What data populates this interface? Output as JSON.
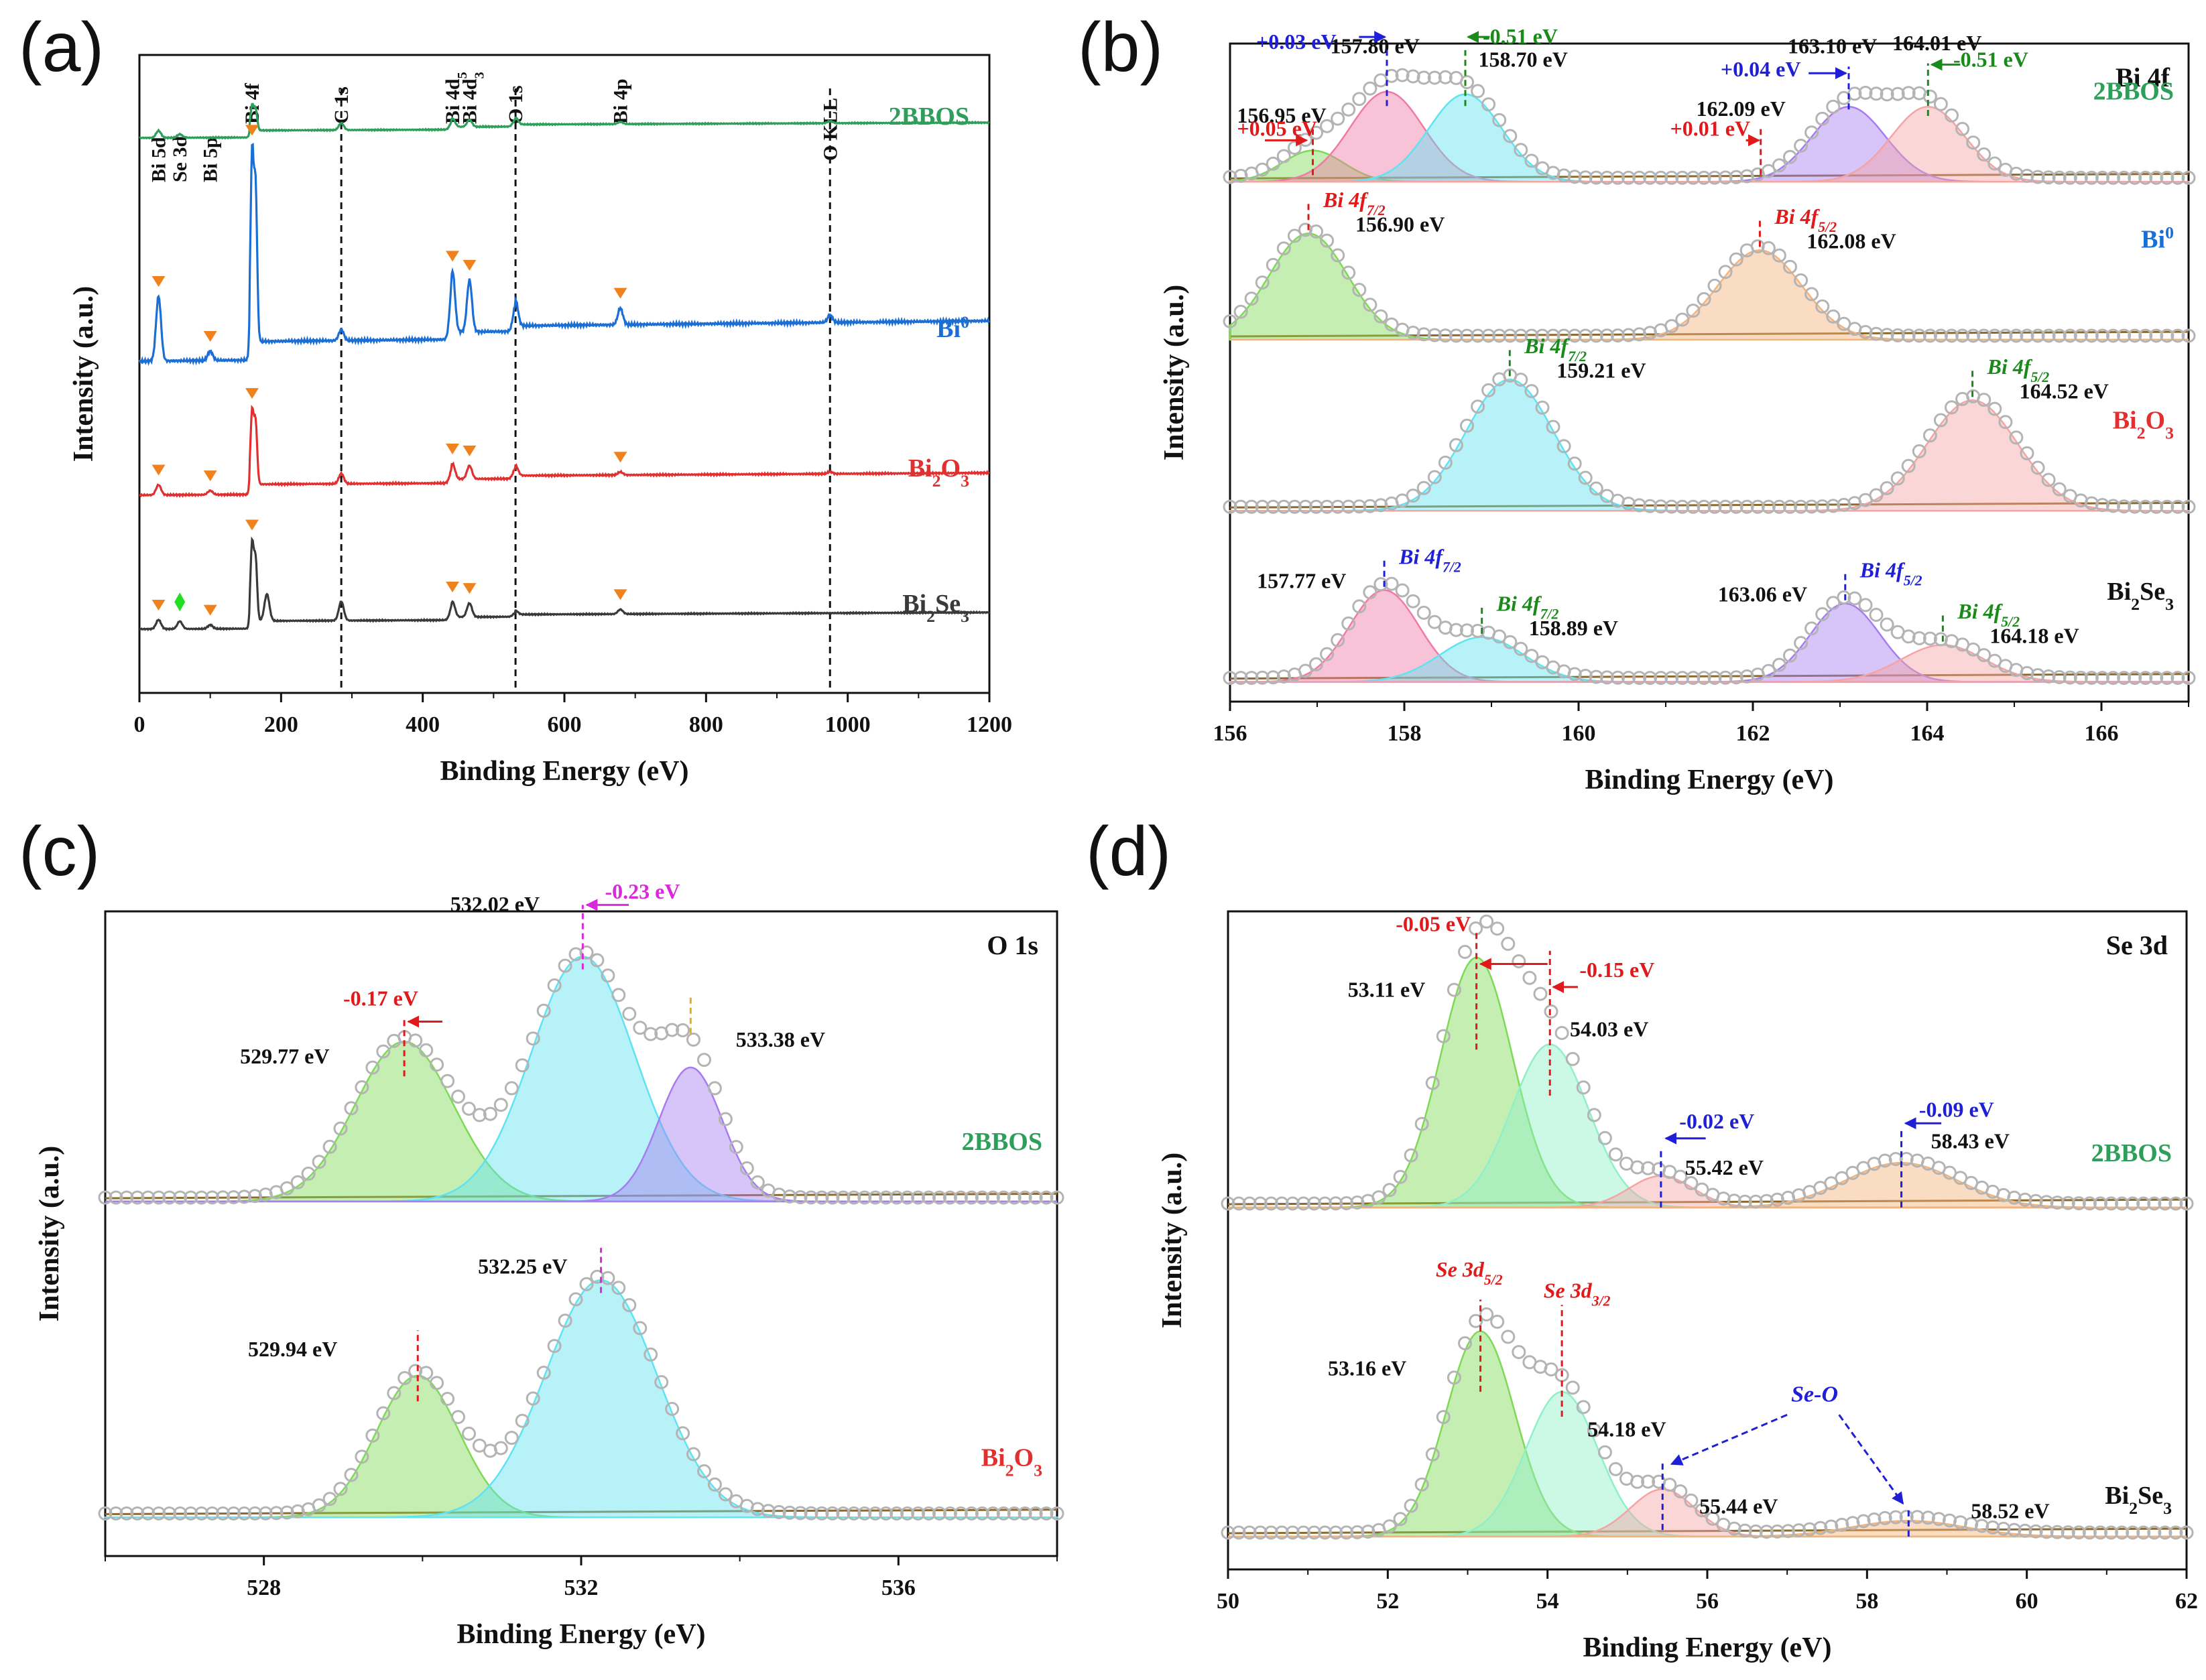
{
  "colors": {
    "green": "#2e9e5b",
    "blue": "#1a6ed4",
    "red": "#e03030",
    "dark": "#3a3a3a",
    "orange": "#f0821e",
    "pink": "#f07aa5",
    "cyan": "#5fe3f2",
    "purple": "#a77cf0",
    "salmon": "#f5a3a3",
    "lime": "#7ed957",
    "peach": "#f5b27a",
    "mint": "#8ff0c8",
    "annBlue": "#1f1fd6",
    "annRed": "#e01a1a",
    "annGreen": "#1a8a1a",
    "annMagenta": "#d92ad9",
    "annGold": "#e0b020",
    "envelope": "#b4b4b4",
    "baseline": "#8b6a2c"
  },
  "chart_data": [
    {
      "panel": "(a)",
      "type": "line",
      "xlabel": "Binding Energy (eV)",
      "ylabel": "Intensity (a.u.)",
      "xlim": [
        0,
        1200
      ],
      "xticks": [
        0,
        200,
        400,
        600,
        800,
        1000,
        1200
      ],
      "vlines": [
        285,
        531,
        975
      ],
      "peak_labels": [
        {
          "text": "Bi 5d",
          "x": 27
        },
        {
          "text": "Se 3d",
          "x": 57
        },
        {
          "text": "Bi 5p",
          "x": 100
        },
        {
          "text": "Bi 4f",
          "x": 159
        },
        {
          "text": "C 1s",
          "x": 285
        },
        {
          "text": "Bi 4d",
          "sub": "5",
          "x": 442
        },
        {
          "text": "Bi 4d",
          "sub": "3",
          "x": 466
        },
        {
          "text": "O 1s",
          "x": 531
        },
        {
          "text": "Bi 4p",
          "x": 679
        },
        {
          "text": "O KLL",
          "x": 975
        }
      ],
      "series": [
        {
          "name": "2BBOS",
          "label": "2BBOS",
          "color_key": "green",
          "offset": 0.87,
          "scale": 0.11,
          "peaks": [
            [
              27,
              0.1
            ],
            [
              57,
              0.05
            ],
            [
              159,
              0.35
            ],
            [
              164,
              0.3
            ],
            [
              285,
              0.1
            ],
            [
              442,
              0.12
            ],
            [
              466,
              0.1
            ],
            [
              531,
              0.1
            ],
            [
              679,
              0.03
            ],
            [
              975,
              0.03
            ]
          ],
          "background": "rising"
        },
        {
          "name": "Bi0",
          "label": "Bi",
          "label_sup": "0",
          "color_key": "blue",
          "offset": 0.52,
          "scale": 0.29,
          "peaks": [
            [
              27,
              0.35
            ],
            [
              100,
              0.05
            ],
            [
              159,
              1.0
            ],
            [
              164,
              0.82
            ],
            [
              285,
              0.06
            ],
            [
              442,
              0.33
            ],
            [
              466,
              0.28
            ],
            [
              531,
              0.14
            ],
            [
              679,
              0.09
            ],
            [
              975,
              0.04
            ]
          ],
          "background": "rising",
          "markers": [
            27,
            100,
            159,
            442,
            466,
            679
          ]
        },
        {
          "name": "Bi2O3",
          "label": "Bi",
          "label_sub": "2",
          "label_mid": "O",
          "label_sub2": "3",
          "color_key": "red",
          "offset": 0.31,
          "scale": 0.16,
          "peaks": [
            [
              27,
              0.1
            ],
            [
              100,
              0.04
            ],
            [
              159,
              0.7
            ],
            [
              164,
              0.6
            ],
            [
              285,
              0.1
            ],
            [
              442,
              0.15
            ],
            [
              466,
              0.13
            ],
            [
              531,
              0.1
            ],
            [
              679,
              0.03
            ],
            [
              975,
              0.02
            ]
          ],
          "background": "rising",
          "markers": [
            27,
            100,
            159,
            442,
            466,
            679
          ]
        },
        {
          "name": "Bi2Se3",
          "label": "Bi",
          "label_sub": "2",
          "label_mid": "Se",
          "label_sub2": "3",
          "color_key": "dark",
          "offset": 0.1,
          "scale": 0.12,
          "peaks": [
            [
              27,
              0.12
            ],
            [
              57,
              0.1
            ],
            [
              100,
              0.05
            ],
            [
              159,
              1.0
            ],
            [
              164,
              0.8
            ],
            [
              180,
              0.35
            ],
            [
              285,
              0.25
            ],
            [
              442,
              0.2
            ],
            [
              466,
              0.18
            ],
            [
              531,
              0.05
            ],
            [
              679,
              0.06
            ]
          ],
          "background": "rising",
          "markers": [
            27,
            100,
            159,
            442,
            466,
            679
          ],
          "diamond": 57
        }
      ]
    },
    {
      "panel": "(b)",
      "type": "line",
      "title": "Bi 4f",
      "xlabel": "Binding Energy (eV)",
      "ylabel": "Intensity (a.u.)",
      "xlim": [
        156,
        167
      ],
      "xticks": [
        156,
        158,
        160,
        162,
        164,
        166
      ],
      "series": [
        {
          "name": "2BBOS",
          "label": "2BBOS",
          "label_color": "green",
          "offset": 0.79,
          "scale": 0.19,
          "components": [
            {
              "center": 156.95,
              "amp": 0.25,
              "sigma": 0.35,
              "color_key": "lime"
            },
            {
              "center": 157.8,
              "amp": 0.72,
              "sigma": 0.42,
              "color_key": "pink"
            },
            {
              "center": 158.7,
              "amp": 0.7,
              "sigma": 0.42,
              "color_key": "cyan"
            },
            {
              "center": 163.1,
              "amp": 0.6,
              "sigma": 0.42,
              "color_key": "purple"
            },
            {
              "center": 164.01,
              "amp": 0.6,
              "sigma": 0.42,
              "color_key": "salmon"
            }
          ],
          "annotations": [
            {
              "text": "157.80 eV",
              "x": 157.8
            },
            {
              "text": "158.70 eV",
              "x": 158.7
            },
            {
              "text": "156.95 eV",
              "x": 156.95
            },
            {
              "text": "163.10 eV",
              "x": 163.1
            },
            {
              "text": "164.01 eV",
              "x": 164.01
            },
            {
              "text": "162.09 eV",
              "x": 162.09
            },
            {
              "text": "+0.03 eV",
              "color_key": "annBlue"
            },
            {
              "text": "-0.51 eV",
              "color_key": "annGreen"
            },
            {
              "text": "+0.05 eV",
              "color_key": "annRed"
            },
            {
              "text": "+0.04 eV",
              "color_key": "annBlue"
            },
            {
              "text": "-0.51 eV",
              "color_key": "annGreen"
            },
            {
              "text": "+0.01 eV",
              "color_key": "annRed"
            }
          ]
        },
        {
          "name": "Bi0",
          "label": "Bi",
          "label_sup": "0",
          "label_color": "blue",
          "offset": 0.55,
          "scale": 0.17,
          "components": [
            {
              "center": 156.9,
              "amp": 0.95,
              "sigma": 0.45,
              "color_key": "lime"
            },
            {
              "center": 162.08,
              "amp": 0.8,
              "sigma": 0.48,
              "color_key": "peach"
            }
          ],
          "annotations": [
            {
              "text": "156.90 eV",
              "x": 156.9,
              "peak": "Bi 4f",
              "sub": "7/2",
              "color_key": "annRed"
            },
            {
              "text": "162.08 eV",
              "x": 162.08,
              "peak": "Bi 4f",
              "sub": "5/2",
              "color_key": "annRed"
            }
          ]
        },
        {
          "name": "Bi2O3",
          "label_parts": [
            "Bi",
            "2",
            "O",
            "3"
          ],
          "label_color": "red",
          "offset": 0.29,
          "scale": 0.21,
          "components": [
            {
              "center": 159.21,
              "amp": 0.95,
              "sigma": 0.5,
              "color_key": "cyan"
            },
            {
              "center": 164.52,
              "amp": 0.8,
              "sigma": 0.52,
              "color_key": "salmon"
            }
          ],
          "annotations": [
            {
              "text": "159.21 eV",
              "x": 159.21,
              "peak": "Bi 4f",
              "sub": "7/2",
              "color_key": "annGreen"
            },
            {
              "text": "164.52 eV",
              "x": 164.52,
              "peak": "Bi 4f",
              "sub": "5/2",
              "color_key": "annGreen"
            }
          ]
        },
        {
          "name": "Bi2Se3",
          "label_parts": [
            "Bi",
            "2",
            "Se",
            "3"
          ],
          "label_color": "dark",
          "offset": 0.03,
          "scale": 0.17,
          "components": [
            {
              "center": 157.77,
              "amp": 0.82,
              "sigma": 0.4,
              "color_key": "pink"
            },
            {
              "center": 158.89,
              "amp": 0.4,
              "sigma": 0.48,
              "color_key": "cyan"
            },
            {
              "center": 163.06,
              "amp": 0.7,
              "sigma": 0.4,
              "color_key": "purple"
            },
            {
              "center": 164.18,
              "amp": 0.33,
              "sigma": 0.48,
              "color_key": "salmon"
            }
          ],
          "annotations": [
            {
              "text": "157.77 eV",
              "x": 157.77,
              "peak": "Bi 4f",
              "sub": "7/2",
              "color_key": "annBlue"
            },
            {
              "text": "158.89 eV",
              "x": 158.89,
              "peak": "Bi 4f",
              "sub": "7/2",
              "color_key": "annGreen"
            },
            {
              "text": "163.06 eV",
              "x": 163.06,
              "peak": "Bi 4f",
              "sub": "5/2",
              "color_key": "annBlue"
            },
            {
              "text": "164.18 eV",
              "x": 164.18,
              "peak": "Bi 4f",
              "sub": "5/2",
              "color_key": "annGreen"
            }
          ]
        }
      ]
    },
    {
      "panel": "(c)",
      "type": "line",
      "title": "O 1s",
      "xlabel": "Binding Energy (eV)",
      "ylabel": "Intensity (a.u.)",
      "xlim": [
        526,
        538
      ],
      "xticks": [
        528,
        532,
        536
      ],
      "series": [
        {
          "name": "2BBOS",
          "label": "2BBOS",
          "label_color": "green",
          "offset": 0.55,
          "scale": 0.4,
          "components": [
            {
              "center": 529.77,
              "amp": 0.62,
              "sigma": 0.62,
              "color_key": "lime"
            },
            {
              "center": 532.02,
              "amp": 0.95,
              "sigma": 0.65,
              "color_key": "cyan"
            },
            {
              "center": 533.38,
              "amp": 0.52,
              "sigma": 0.4,
              "color_key": "purple"
            }
          ],
          "annotations": [
            {
              "text": "529.77 eV",
              "x": 529.77
            },
            {
              "text": "532.02 eV",
              "x": 532.02
            },
            {
              "text": "533.38 eV",
              "x": 533.38
            },
            {
              "text": "-0.17 eV",
              "color_key": "annRed"
            },
            {
              "text": "-0.23 eV",
              "color_key": "annMagenta"
            }
          ]
        },
        {
          "name": "Bi2O3",
          "label_parts": [
            "Bi",
            "2",
            "O",
            "3"
          ],
          "label_color": "red",
          "offset": 0.06,
          "scale": 0.4,
          "components": [
            {
              "center": 529.94,
              "amp": 0.55,
              "sigma": 0.52,
              "color_key": "lime"
            },
            {
              "center": 532.25,
              "amp": 0.92,
              "sigma": 0.7,
              "color_key": "cyan"
            }
          ],
          "annotations": [
            {
              "text": "529.94 eV",
              "x": 529.94
            },
            {
              "text": "532.25 eV",
              "x": 532.25
            }
          ]
        }
      ]
    },
    {
      "panel": "(d)",
      "type": "line",
      "title": "Se 3d",
      "xlabel": "Binding Energy (eV)",
      "ylabel": "Intensity (a.u.)",
      "xlim": [
        50,
        62
      ],
      "xticks": [
        50,
        52,
        54,
        56,
        58,
        60,
        62
      ],
      "series": [
        {
          "name": "2BBOS",
          "label": "2BBOS",
          "label_color": "green",
          "offset": 0.55,
          "scale": 0.4,
          "components": [
            {
              "center": 53.11,
              "amp": 0.95,
              "sigma": 0.45,
              "color_key": "lime"
            },
            {
              "center": 54.03,
              "amp": 0.62,
              "sigma": 0.48,
              "color_key": "mint"
            },
            {
              "center": 55.42,
              "amp": 0.12,
              "sigma": 0.4,
              "color_key": "salmon"
            },
            {
              "center": 58.43,
              "amp": 0.17,
              "sigma": 0.7,
              "color_key": "peach"
            }
          ],
          "annotations": [
            {
              "text": "53.11 eV",
              "x": 53.11
            },
            {
              "text": "54.03 eV",
              "x": 54.03
            },
            {
              "text": "55.42 eV",
              "x": 55.42
            },
            {
              "text": "58.43 eV",
              "x": 58.43
            },
            {
              "text": "-0.05 eV",
              "color_key": "annRed"
            },
            {
              "text": "-0.15 eV",
              "color_key": "annRed"
            },
            {
              "text": "-0.02 eV",
              "color_key": "annBlue"
            },
            {
              "text": "-0.09 eV",
              "color_key": "annBlue"
            }
          ]
        },
        {
          "name": "Bi2Se3",
          "label_parts": [
            "Bi",
            "2",
            "Se",
            "3"
          ],
          "label_color": "dark",
          "offset": 0.05,
          "scale": 0.4,
          "components": [
            {
              "center": 53.16,
              "amp": 0.78,
              "sigma": 0.43,
              "color_key": "lime"
            },
            {
              "center": 54.18,
              "amp": 0.55,
              "sigma": 0.45,
              "color_key": "mint"
            },
            {
              "center": 55.44,
              "amp": 0.18,
              "sigma": 0.4,
              "color_key": "salmon"
            },
            {
              "center": 58.52,
              "amp": 0.06,
              "sigma": 0.7,
              "color_key": "peach"
            }
          ],
          "annotations": [
            {
              "text": "53.16 eV",
              "x": 53.16,
              "peak": "Se 3d",
              "sub": "5/2",
              "color_key": "annRed"
            },
            {
              "text": "54.18 eV",
              "x": 54.18,
              "peak": "Se 3d",
              "sub": "3/2",
              "color_key": "annRed"
            },
            {
              "text": "55.44 eV",
              "x": 55.44
            },
            {
              "text": "58.52 eV",
              "x": 58.52
            },
            {
              "text": "Se-O",
              "color_key": "annBlue"
            }
          ]
        }
      ]
    }
  ]
}
